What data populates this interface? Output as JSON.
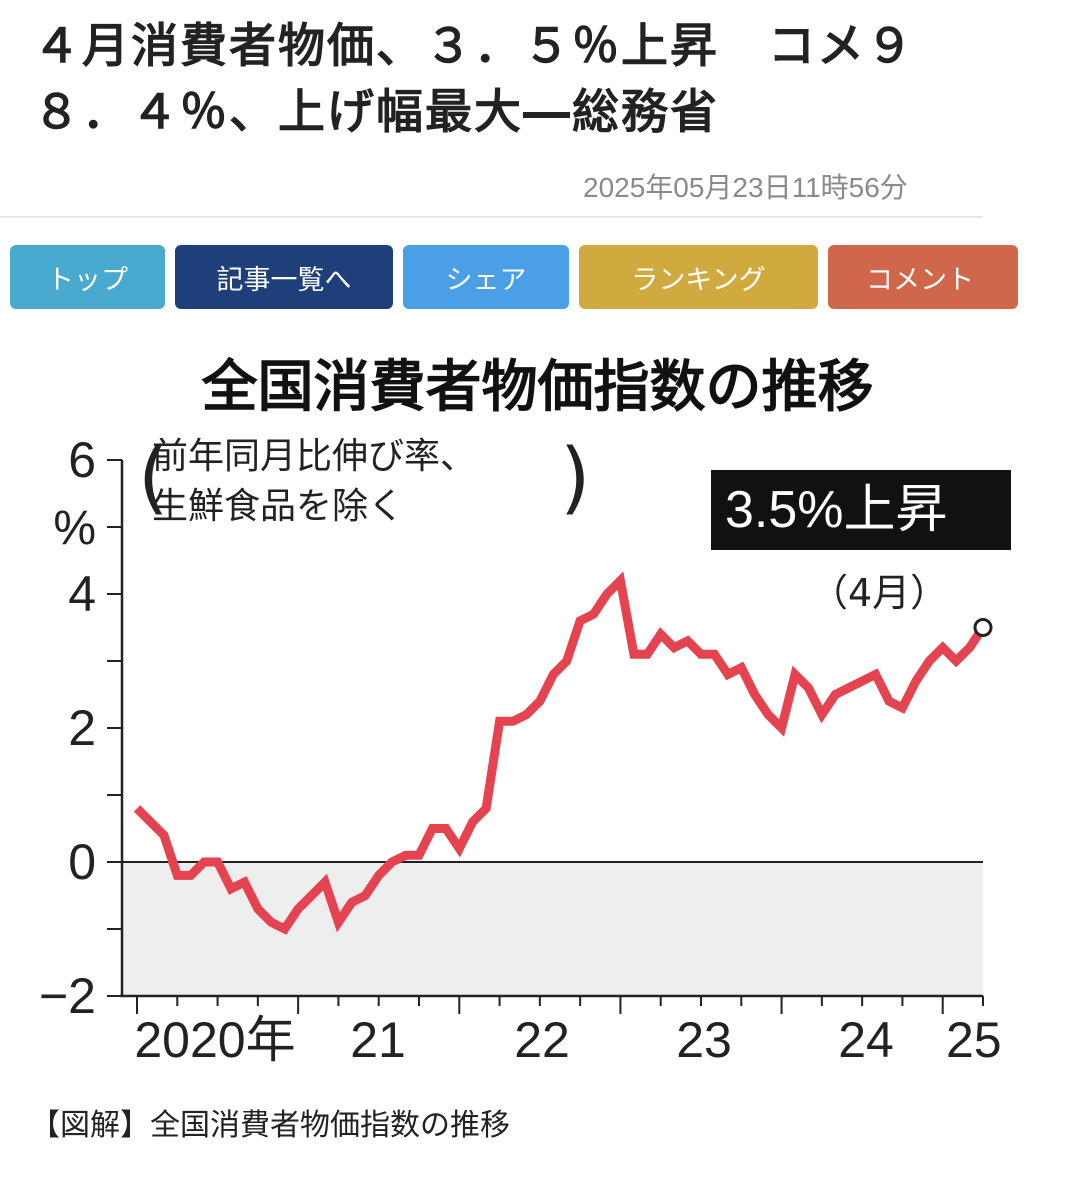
{
  "article": {
    "headline": "４月消費者物価、３．５％上昇　コメ９８．４％、上げ幅最大―総務省",
    "timestamp": "2025年05月23日11時56分"
  },
  "nav": {
    "items": [
      {
        "label": "トップ",
        "color": "#4aa9cf"
      },
      {
        "label": "記事一覧へ",
        "color": "#1f3f7a"
      },
      {
        "label": "シェア",
        "color": "#4b9fe6"
      },
      {
        "label": "ランキング",
        "color": "#d1aa3f"
      },
      {
        "label": "コメント",
        "color": "#d0664a"
      }
    ]
  },
  "caption": "【図解】全国消費者物価指数の推移",
  "chart_data": {
    "type": "line",
    "title": "全国消費者物価指数の推移",
    "ylabel": "%",
    "note_line1": "前年同月比伸び率、",
    "note_line2": "生鮮食品を除く",
    "ylim": [
      -2,
      6
    ],
    "y_ticks": [
      6,
      4,
      2,
      0,
      -2
    ],
    "y_tick_labels": [
      "6",
      "4",
      "2",
      "0",
      "−2"
    ],
    "x_tick_labels": [
      "2020年",
      "21",
      "22",
      "23",
      "24",
      "25"
    ],
    "highlight": {
      "label": "3.5%上昇",
      "sub_label": "（4月）",
      "value": 3.5
    },
    "line_color": "#e5434f",
    "negative_fill": "#eeeeee",
    "series": [
      {
        "values": [
          0.8,
          0.6,
          0.4,
          -0.2,
          -0.2,
          0.0,
          0.0,
          -0.4,
          -0.3,
          -0.7,
          -0.9,
          -1.0,
          -0.7,
          -0.5,
          -0.3,
          -0.9,
          -0.6,
          -0.5,
          -0.2,
          0.0,
          0.1,
          0.1,
          0.5,
          0.5,
          0.2,
          0.6,
          0.8,
          2.1,
          2.1,
          2.2,
          2.4,
          2.8,
          3.0,
          3.6,
          3.7,
          4.0,
          4.2,
          3.1,
          3.1,
          3.4,
          3.2,
          3.3,
          3.1,
          3.1,
          2.8,
          2.9,
          2.5,
          2.2,
          2.0,
          2.8,
          2.6,
          2.2,
          2.5,
          2.6,
          2.7,
          2.8,
          2.4,
          2.3,
          2.7,
          3.0,
          3.2,
          3.0,
          3.2,
          3.5
        ]
      }
    ]
  }
}
